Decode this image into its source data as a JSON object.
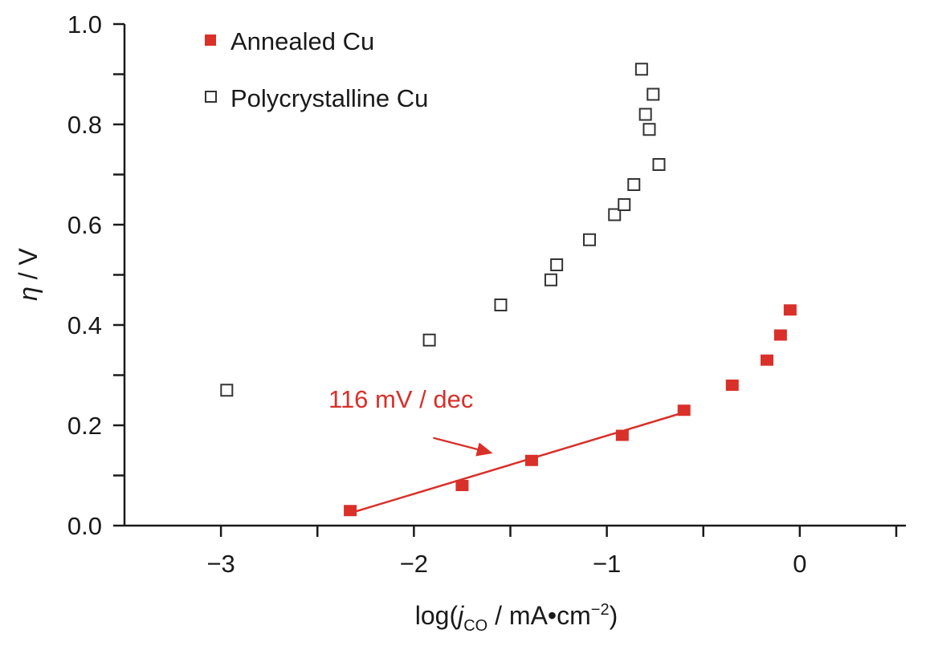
{
  "chart_data": {
    "type": "scatter",
    "xlabel": {
      "prefix": "log(",
      "italic": "j",
      "sub": "CO",
      "suffix": " / mA•cm",
      "sup": "−2",
      "close": ")"
    },
    "ylabel": {
      "italic": "η",
      "suffix": " / V"
    },
    "xlim": [
      -3.5,
      0.55
    ],
    "ylim": [
      0,
      1.0
    ],
    "x_ticks": [
      -3,
      -2,
      -1,
      0
    ],
    "x_tick_labels": [
      "−3",
      "−2",
      "−1",
      "0"
    ],
    "x_minor_ticks": [
      -2.5,
      -1.5,
      -0.5,
      0.5
    ],
    "y_ticks": [
      0,
      0.2,
      0.4,
      0.6,
      0.8,
      1.0
    ],
    "y_tick_labels": [
      "0.0",
      "0.2",
      "0.4",
      "0.6",
      "0.8",
      "1.0"
    ],
    "y_minor_ticks": [
      0.1,
      0.3,
      0.5,
      0.7,
      0.9
    ],
    "grid": false,
    "legend_position": "top-left",
    "series": [
      {
        "name": "Annealed Cu",
        "marker": "filled-square",
        "color": "#d9302a",
        "points": [
          {
            "x": -2.33,
            "y": 0.03
          },
          {
            "x": -1.75,
            "y": 0.08
          },
          {
            "x": -1.39,
            "y": 0.13
          },
          {
            "x": -0.92,
            "y": 0.18
          },
          {
            "x": -0.6,
            "y": 0.23
          },
          {
            "x": -0.35,
            "y": 0.28
          },
          {
            "x": -0.17,
            "y": 0.33
          },
          {
            "x": -0.1,
            "y": 0.38
          },
          {
            "x": -0.05,
            "y": 0.43
          }
        ]
      },
      {
        "name": "Polycrystalline Cu",
        "marker": "open-square",
        "color": "#333333",
        "points": [
          {
            "x": -2.97,
            "y": 0.27
          },
          {
            "x": -1.92,
            "y": 0.37
          },
          {
            "x": -1.55,
            "y": 0.44
          },
          {
            "x": -1.29,
            "y": 0.49
          },
          {
            "x": -1.26,
            "y": 0.52
          },
          {
            "x": -1.09,
            "y": 0.57
          },
          {
            "x": -0.96,
            "y": 0.62
          },
          {
            "x": -0.91,
            "y": 0.64
          },
          {
            "x": -0.86,
            "y": 0.68
          },
          {
            "x": -0.73,
            "y": 0.72
          },
          {
            "x": -0.78,
            "y": 0.79
          },
          {
            "x": -0.8,
            "y": 0.82
          },
          {
            "x": -0.76,
            "y": 0.86
          },
          {
            "x": -0.82,
            "y": 0.91
          }
        ]
      }
    ],
    "fit_line": {
      "color": "#d9302a",
      "x1": -2.33,
      "y1": 0.025,
      "x2": -0.58,
      "y2": 0.228
    },
    "annotation": {
      "text": "116 mV / dec",
      "color": "#d9302a",
      "text_x": -2.5,
      "text_y": 0.245,
      "arrow_from": {
        "x": -1.9,
        "y": 0.175
      },
      "arrow_to": {
        "x": -1.6,
        "y": 0.145
      }
    }
  }
}
